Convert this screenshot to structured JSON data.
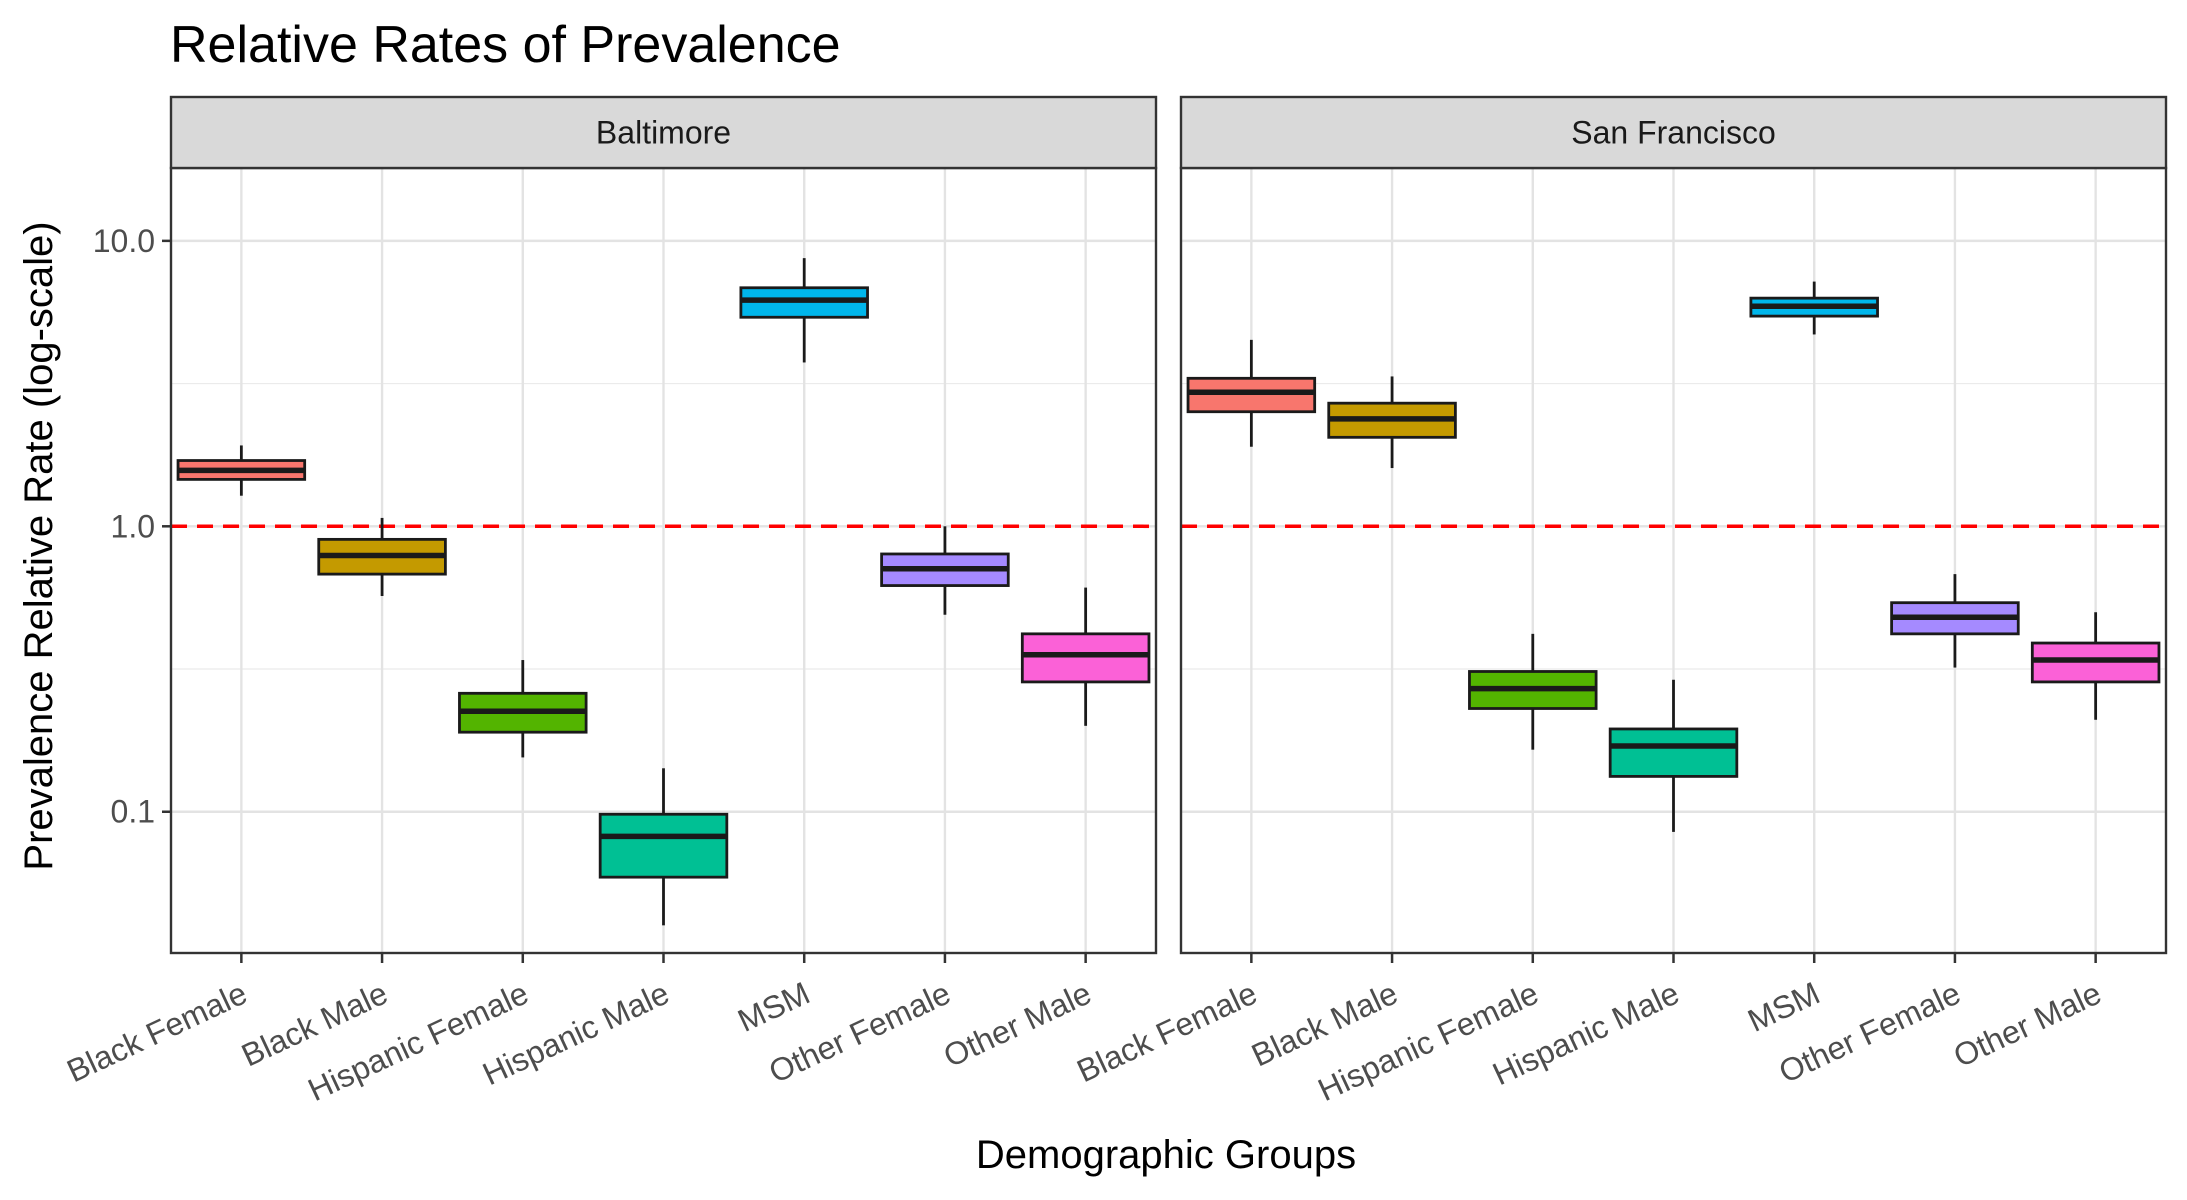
{
  "chart_data": {
    "type": "box",
    "title": "Relative Rates of Prevalence",
    "xlabel": "Demographic Groups",
    "ylabel": "Prevalence Relative Rate (log-scale)",
    "y_scale": "log10",
    "ylim": [
      0.032,
      18
    ],
    "y_ticks": [
      0.1,
      1.0,
      10.0
    ],
    "y_tick_labels": [
      "0.1",
      "1.0",
      "10.0"
    ],
    "reference_line": {
      "y": 1.0,
      "color": "#FF0000",
      "style": "dashed"
    },
    "grid": true,
    "categories": [
      "Black Female",
      "Black Male",
      "Hispanic Female",
      "Hispanic Male",
      "MSM",
      "Other Female",
      "Other Male"
    ],
    "colors": [
      "#F8766D",
      "#C49A00",
      "#53B400",
      "#00C094",
      "#00B6EB",
      "#A58AFF",
      "#FB61D7"
    ],
    "panels": [
      {
        "name": "Baltimore",
        "boxes": [
          {
            "category": "Black Female",
            "lower": 1.28,
            "q1": 1.46,
            "median": 1.57,
            "q3": 1.7,
            "upper": 1.92
          },
          {
            "category": "Black Male",
            "lower": 0.57,
            "q1": 0.68,
            "median": 0.79,
            "q3": 0.9,
            "upper": 1.07
          },
          {
            "category": "Hispanic Female",
            "lower": 0.155,
            "q1": 0.19,
            "median": 0.225,
            "q3": 0.26,
            "upper": 0.34
          },
          {
            "category": "Hispanic Male",
            "lower": 0.04,
            "q1": 0.059,
            "median": 0.082,
            "q3": 0.098,
            "upper": 0.142
          },
          {
            "category": "MSM",
            "lower": 3.75,
            "q1": 5.4,
            "median": 6.2,
            "q3": 6.85,
            "upper": 8.7
          },
          {
            "category": "Other Female",
            "lower": 0.49,
            "q1": 0.62,
            "median": 0.71,
            "q3": 0.8,
            "upper": 1.0
          },
          {
            "category": "Other Male",
            "lower": 0.2,
            "q1": 0.285,
            "median": 0.355,
            "q3": 0.42,
            "upper": 0.61
          }
        ]
      },
      {
        "name": "San Francisco",
        "boxes": [
          {
            "category": "Black Female",
            "lower": 1.9,
            "q1": 2.52,
            "median": 2.95,
            "q3": 3.3,
            "upper": 4.5
          },
          {
            "category": "Black Male",
            "lower": 1.6,
            "q1": 2.05,
            "median": 2.38,
            "q3": 2.7,
            "upper": 3.35
          },
          {
            "category": "Hispanic Female",
            "lower": 0.165,
            "q1": 0.23,
            "median": 0.27,
            "q3": 0.31,
            "upper": 0.42
          },
          {
            "category": "Hispanic Male",
            "lower": 0.085,
            "q1": 0.133,
            "median": 0.17,
            "q3": 0.195,
            "upper": 0.29
          },
          {
            "category": "MSM",
            "lower": 4.7,
            "q1": 5.45,
            "median": 5.9,
            "q3": 6.3,
            "upper": 7.2
          },
          {
            "category": "Other Female",
            "lower": 0.32,
            "q1": 0.42,
            "median": 0.48,
            "q3": 0.54,
            "upper": 0.68
          },
          {
            "category": "Other Male",
            "lower": 0.21,
            "q1": 0.285,
            "median": 0.34,
            "q3": 0.39,
            "upper": 0.5
          }
        ]
      }
    ]
  }
}
